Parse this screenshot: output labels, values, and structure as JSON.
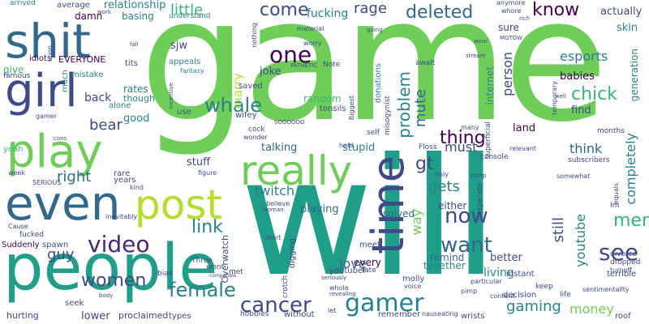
{
  "colors": {
    "background": "#ffffff",
    "dark_purple": "#440154",
    "indigo": "#482878",
    "blue": "#3e4a89",
    "steel_blue": "#31688e",
    "teal_blue": "#26828e",
    "teal": "#1f9e89",
    "green_teal": "#35b779",
    "green": "#6ece58",
    "lime": "#b5de2b",
    "yellow": "#fde725"
  },
  "words": [
    "game",
    "will",
    "people",
    "shit",
    "girl",
    "play",
    "even",
    "post",
    "really",
    "time",
    "gamer",
    "video",
    "women",
    "cancer",
    "female",
    "now",
    "want",
    "link",
    "see",
    "men",
    "whale",
    "one",
    "come",
    "know",
    "deleted",
    "rage",
    "fucking",
    "little",
    "relationship",
    "esports",
    "actually",
    "person",
    "chick",
    "problem",
    "mute",
    "thing",
    "gt",
    "think",
    "completely",
    "youtube",
    "still",
    "way",
    "must",
    "money",
    "gaming",
    "love",
    "guy",
    "right",
    "bear",
    "good",
    "back",
    "marry",
    "joke",
    "twitch",
    "playing",
    "gets",
    "stupid",
    "talking",
    "stuff",
    "solved",
    "either",
    "every",
    "remind",
    "together",
    "living",
    "better",
    "find",
    "land",
    "babies",
    "skin",
    "generation",
    "internet",
    "random",
    "donations",
    "saved",
    "wifey",
    "sjw",
    "appeals",
    "fantasy",
    "rates",
    "though",
    "alone",
    "years",
    "rare",
    "kind",
    "EVERYONE",
    "tits",
    "mistake",
    "much",
    "idiots",
    "damn",
    "average",
    "work",
    "basing",
    "understand",
    "arrived",
    "yeah",
    "give",
    "famous",
    "Suddenly",
    "spawn",
    "fucked",
    "Cause",
    "hurting",
    "seek",
    "lower",
    "proclaimed",
    "types",
    "hobbies",
    "without",
    "wont",
    "met",
    "bias",
    "Three",
    "Overwatch",
    "figure",
    "cock",
    "wonder",
    "digging",
    "crotch",
    "short",
    "believe",
    "woman",
    "meet",
    "youtuber",
    "molly",
    "fate",
    "whole",
    "revealing",
    "seriously",
    "let",
    "remember",
    "nauseating",
    "wrists",
    "decision",
    "instant",
    "keep",
    "life",
    "roof",
    "terrible",
    "divorce",
    "dropped",
    "turnoff",
    "equals",
    "sentimentality",
    "desperate",
    "content",
    "pimp",
    "particular",
    "voice",
    "Floss",
    "hold",
    "self",
    "many",
    "holy",
    "console",
    "relevant",
    "comp",
    "subscribers",
    "somewhat",
    "months",
    "temporary",
    "superficial",
    "Biggest",
    "misogynist",
    "tonsils",
    "PATHETIC",
    "Note",
    "awalt",
    "stream",
    "anymore",
    "whore",
    "rich",
    "sure",
    "nothing",
    "material",
    "worry",
    "going",
    "MGTOW",
    "wear",
    "SERIOUS",
    "week",
    "upon",
    "fall",
    "gamer",
    "SOOOOOO",
    "use",
    "well",
    "Im",
    "cons",
    "incentive",
    "inevitably",
    "compatible",
    "body"
  ]
}
